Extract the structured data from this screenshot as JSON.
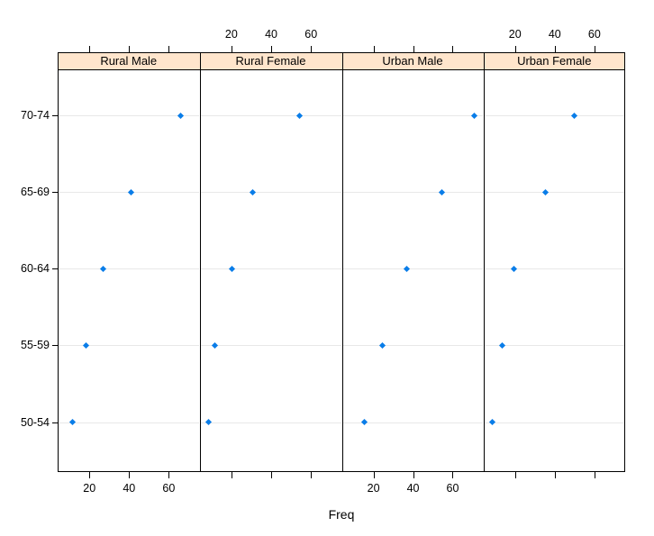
{
  "chart_data": {
    "type": "scatter",
    "subtype": "lattice-dotplot",
    "title": "",
    "xlabel": "Freq",
    "ylabel": "",
    "categories": [
      "50-54",
      "55-59",
      "60-64",
      "65-69",
      "70-74"
    ],
    "x_ticks": [
      20,
      40,
      60
    ],
    "xlim": [
      4,
      75.5
    ],
    "grid": "row-lines",
    "legend_position": "none",
    "panels": [
      {
        "label": "Rural Male",
        "x_axis_label_side": "bottom",
        "values": [
          11.7,
          18.1,
          26.9,
          41.0,
          66.0
        ]
      },
      {
        "label": "Rural Female",
        "x_axis_label_side": "top",
        "values": [
          8.7,
          11.7,
          20.3,
          30.9,
          54.3
        ]
      },
      {
        "label": "Urban Male",
        "x_axis_label_side": "bottom",
        "values": [
          15.4,
          24.3,
          37.0,
          54.6,
          71.1
        ]
      },
      {
        "label": "Urban Female",
        "x_axis_label_side": "top",
        "values": [
          8.4,
          13.6,
          19.3,
          35.1,
          50.0
        ]
      }
    ],
    "colors": {
      "point": "#0a7de8",
      "strip_bg": "#ffe5cc",
      "row_line": "#e8e8e8",
      "axis": "#000000"
    },
    "marker": "filled-diamond"
  }
}
